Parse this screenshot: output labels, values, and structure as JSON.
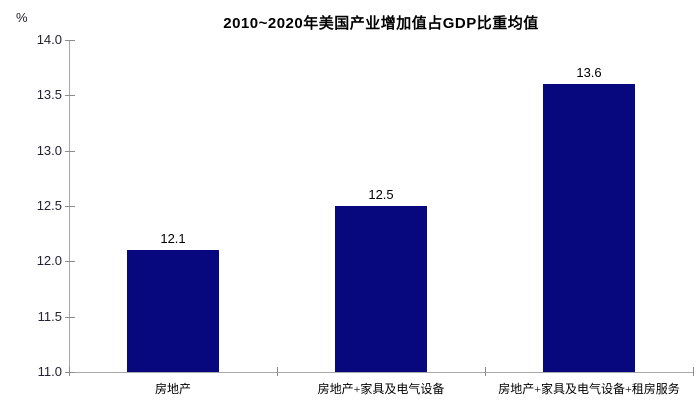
{
  "chart_data": {
    "type": "bar",
    "title": "2010~2020年美国产业增加值占GDP比重均值",
    "unit_label": "%",
    "categories": [
      "房地产",
      "房地产+家具及电气设备",
      "房地产+家具及电气设备+租房服务"
    ],
    "values": [
      12.1,
      12.5,
      13.6
    ],
    "data_labels": [
      "12.1",
      "12.5",
      "13.6"
    ],
    "ylim": [
      11.0,
      14.0
    ],
    "ytick_step": 0.5,
    "ytick_labels": [
      "14.0",
      "13.5",
      "13.0",
      "12.5",
      "12.0",
      "11.5",
      "11.0"
    ],
    "xlabel": "",
    "ylabel": "%",
    "grid": "off",
    "legend": "none",
    "colors": {
      "bar": "#08087e",
      "axis_line": "#a8a8a8",
      "tick_mark": "#8c8c8c",
      "title_text": "#000000",
      "data_label_text": "#000000",
      "ytick_text": "#222233",
      "background": "#ffffff"
    }
  }
}
